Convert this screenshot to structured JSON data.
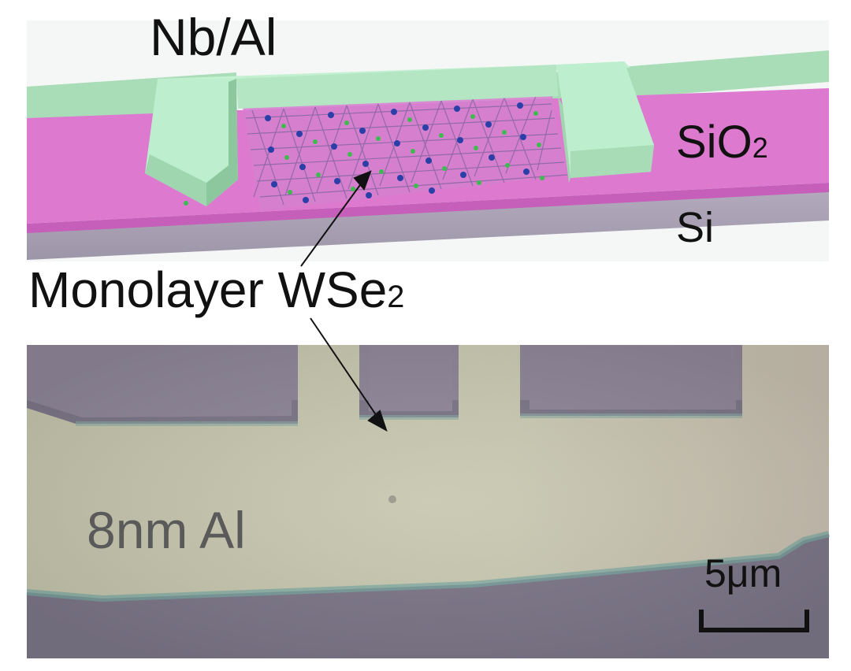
{
  "top_panel": {
    "labels": {
      "electrode_main": "Nb/Al",
      "substrate_oxide_main": "SiO",
      "substrate_oxide_sub": "2",
      "substrate": "Si"
    }
  },
  "shared_label": {
    "main": "Monolayer WSe",
    "sub": "2"
  },
  "bottom_panel": {
    "film_label": "8nm Al",
    "scale_bar_label": "5μm"
  },
  "colors": {
    "electrode": "#b9ecc9",
    "electrode_dark": "#94cfa9",
    "sio2": "#dd7ad0",
    "si": "#a79fb1",
    "lattice_w": "#2a3fa8",
    "lattice_se": "#3dbb4f",
    "micrograph_bg": "#7a7485",
    "micrograph_film": "#c6c7ae"
  }
}
